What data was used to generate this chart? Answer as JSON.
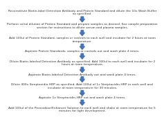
{
  "steps": [
    "Reconstitute Biotin-label Detection Antibody and Protein Standard and dilute the 10x Wash Buffer\nas specified.",
    "Perform serial dilution of Protein Standard and prepare samples as desired. See sample preparation\nsection for instructions to dilute serum and plasma samples.",
    "Add 100ul of Protein Standard, samples or controls to each well and incubate for 2 hours at room\ntemperature.",
    "Aspirate Protein Standards, samples or controls out and wash plate 4 times.",
    "Dilute Biotin-labeled Detection Antibody as specified. Add 100ul to each well and incubate for 2\nhours at room temperature.",
    "Aspirate Biotin-labeled Detection Antibody out and wash plate 4 times.",
    "Dilute 400x Streptavidin-HRP as specified. Add 100ul of 1x Streptavidin-HRP to each well and\nincubate at room temperature for 30 minutes.",
    "Aspirate 1x Streptavidin-HRP out and wash plate 4 times.",
    "Add 100ul of the Peroxidase/Enhancer Solution to each well and shake at room temperature for 5\nminutes for light development."
  ],
  "arrow_color": "#4c72b0",
  "text_color": "#333333",
  "bg_color": "#ffffff",
  "fontsize": 3.2,
  "line_heights": [
    2,
    2,
    2,
    1,
    2,
    1,
    2,
    1,
    2
  ]
}
